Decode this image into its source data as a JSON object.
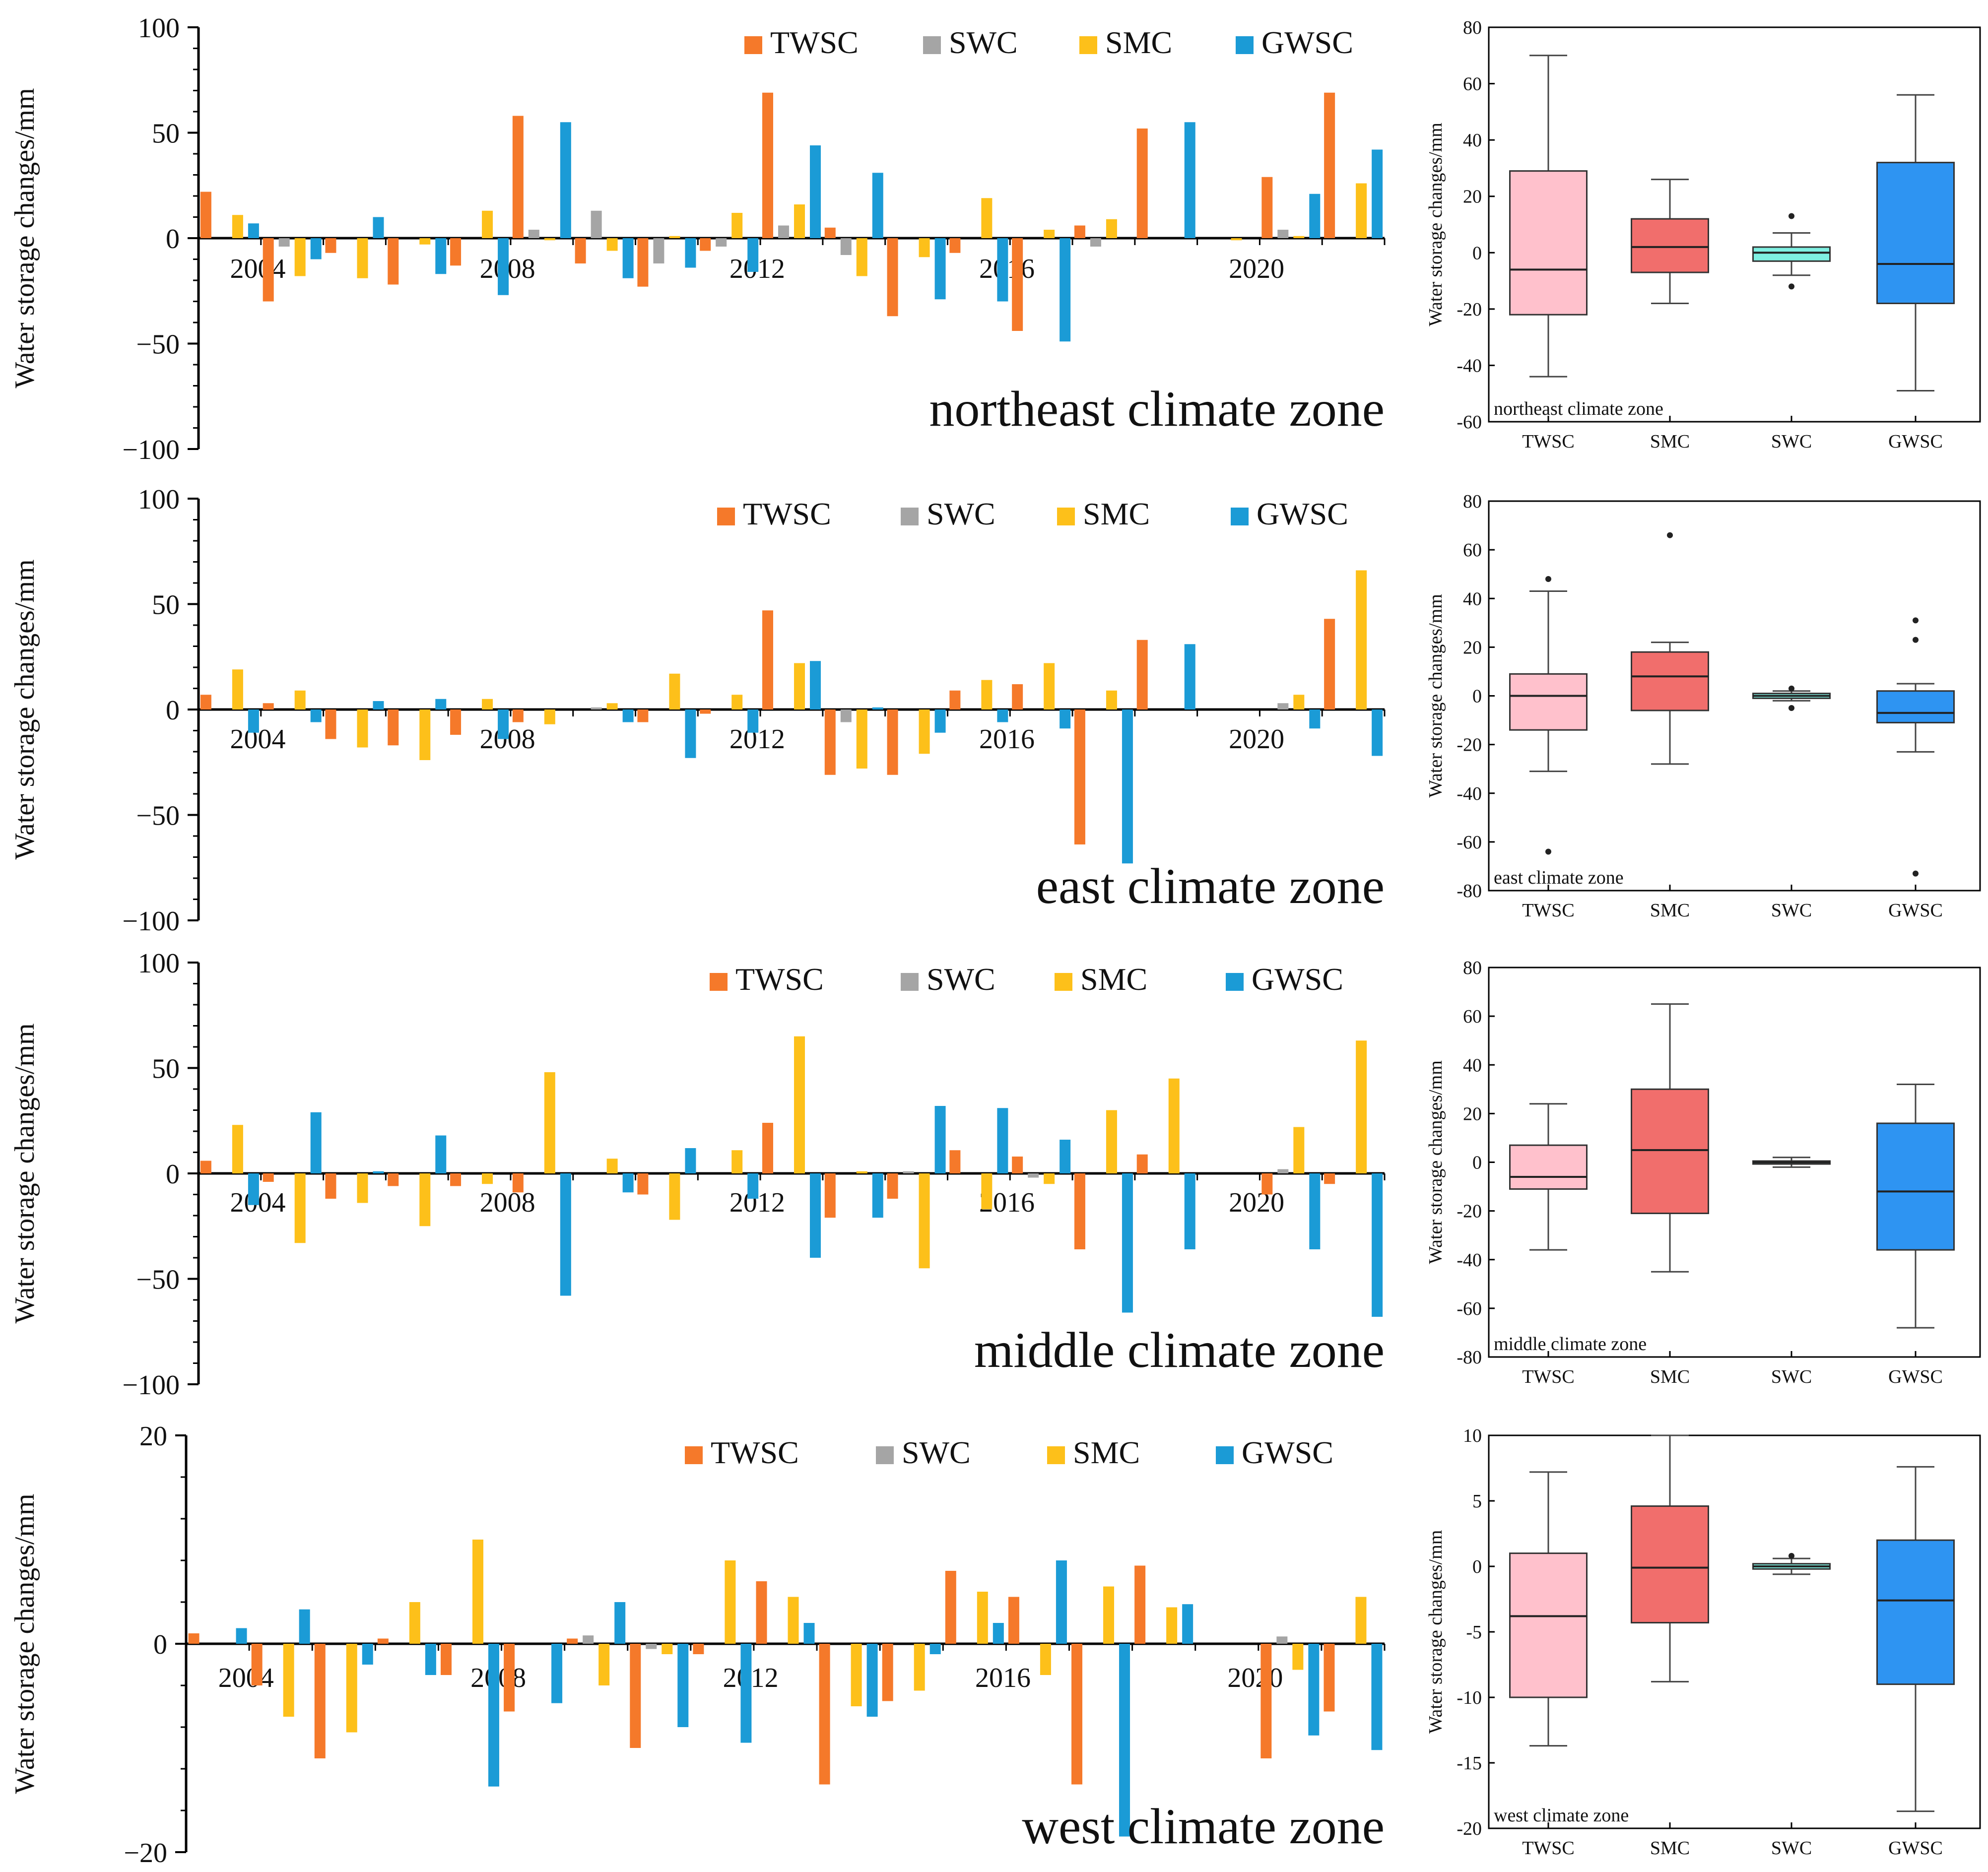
{
  "colors": {
    "TWSC": "#F5792A",
    "SWC": "#A5A5A5",
    "SMC": "#FDC01A",
    "GWSC": "#1B9BD6",
    "box_TWSC": "#FFC1CC",
    "box_SMC": "#F16E6C",
    "box_SWC": "#7FF0E2",
    "box_GWSC": "#2E94F2"
  },
  "chart_data": [
    {
      "type": "bar",
      "zone": "northeast climate zone",
      "ylabel": "Water storage changes/mm",
      "ylim": [
        -100,
        100
      ],
      "yticks": [
        "100",
        "50",
        "0",
        "−50",
        "−100"
      ],
      "year_labels": [
        "2004",
        "2008",
        "2012",
        "2016",
        "2020"
      ],
      "categories": [
        "2003",
        "2004",
        "2005",
        "2006",
        "2007",
        "2008",
        "2009",
        "2010",
        "2011",
        "2012",
        "2013",
        "2014",
        "2015",
        "2016",
        "2017",
        "2018",
        "2019",
        "2020",
        "2021"
      ],
      "legend": [
        "TWSC",
        "SWC",
        "SMC",
        "GWSC"
      ],
      "series": [
        {
          "name": "TWSC",
          "values": [
            22,
            -30,
            -7,
            -22,
            -13,
            58,
            -12,
            -23,
            -6,
            69,
            5,
            -37,
            -7,
            -44,
            6,
            52,
            0,
            29,
            69
          ]
        },
        {
          "name": "SWC",
          "values": [
            0,
            -4,
            0,
            0,
            0,
            4,
            13,
            -12,
            -4,
            6,
            -8,
            0,
            0,
            0,
            -4,
            0,
            0,
            4,
            0
          ]
        },
        {
          "name": "SMC",
          "values": [
            11,
            -18,
            -19,
            -3,
            13,
            -1,
            -6,
            1,
            12,
            16,
            -18,
            -9,
            19,
            4,
            9,
            0,
            -1,
            1,
            26
          ]
        },
        {
          "name": "GWSC",
          "values": [
            7,
            -10,
            10,
            -17,
            -27,
            55,
            -19,
            -14,
            -16,
            44,
            31,
            -29,
            -30,
            -49,
            0,
            55,
            0,
            21,
            42
          ]
        }
      ]
    },
    {
      "type": "bar",
      "zone": "east climate zone",
      "ylabel": "Water storage changes/mm",
      "ylim": [
        -100,
        100
      ],
      "yticks": [
        "100",
        "50",
        "0",
        "−50",
        "−100"
      ],
      "year_labels": [
        "2004",
        "2008",
        "2012",
        "2016",
        "2020"
      ],
      "categories": [
        "2003",
        "2004",
        "2005",
        "2006",
        "2007",
        "2008",
        "2009",
        "2010",
        "2011",
        "2012",
        "2013",
        "2014",
        "2015",
        "2016",
        "2017",
        "2018",
        "2019",
        "2020",
        "2021"
      ],
      "legend": [
        "TWSC",
        "SWC",
        "SMC",
        "GWSC"
      ],
      "series": [
        {
          "name": "TWSC",
          "values": [
            7,
            3,
            -14,
            -17,
            -12,
            -6,
            0,
            -6,
            -2,
            47,
            -31,
            -31,
            9,
            12,
            -64,
            33,
            0,
            0,
            43
          ]
        },
        {
          "name": "SWC",
          "values": [
            0,
            0,
            0,
            0,
            0,
            0,
            1,
            0,
            0,
            0,
            -6,
            0,
            0,
            0,
            0,
            0,
            0,
            3,
            0
          ]
        },
        {
          "name": "SMC",
          "values": [
            19,
            9,
            -18,
            -24,
            5,
            -7,
            3,
            17,
            7,
            22,
            -28,
            -21,
            14,
            22,
            9,
            0,
            0,
            7,
            66
          ]
        },
        {
          "name": "GWSC",
          "values": [
            -11,
            -6,
            4,
            5,
            -14,
            0,
            -6,
            -23,
            -11,
            23,
            1,
            -11,
            -6,
            -9,
            -73,
            31,
            0,
            -9,
            -22
          ]
        }
      ]
    },
    {
      "type": "bar",
      "zone": "middle climate zone",
      "ylabel": "Water storage changes/mm",
      "ylim": [
        -100,
        100
      ],
      "yticks": [
        "100",
        "50",
        "0",
        "−50",
        "−100"
      ],
      "year_labels": [
        "2004",
        "2008",
        "2012",
        "2016",
        "2020"
      ],
      "categories": [
        "2003",
        "2004",
        "2005",
        "2006",
        "2007",
        "2008",
        "2009",
        "2010",
        "2011",
        "2012",
        "2013",
        "2014",
        "2015",
        "2016",
        "2017",
        "2018",
        "2019",
        "2020",
        "2021"
      ],
      "legend": [
        "TWSC",
        "SWC",
        "SMC",
        "GWSC"
      ],
      "series": [
        {
          "name": "TWSC",
          "values": [
            6,
            -4,
            -12,
            -6,
            -6,
            -9,
            0,
            -10,
            0,
            24,
            -21,
            -12,
            11,
            8,
            -36,
            9,
            0,
            -10,
            -5
          ]
        },
        {
          "name": "SWC",
          "values": [
            0,
            0,
            0,
            0,
            0,
            0,
            0,
            0,
            0,
            0,
            0,
            1,
            0,
            -2,
            0,
            0,
            0,
            2,
            0
          ]
        },
        {
          "name": "SMC",
          "values": [
            23,
            -33,
            -14,
            -25,
            -5,
            48,
            7,
            -22,
            11,
            65,
            1,
            -45,
            -17,
            -5,
            30,
            45,
            0,
            22,
            63
          ]
        },
        {
          "name": "GWSC",
          "values": [
            -15,
            29,
            1,
            18,
            0,
            -58,
            -9,
            12,
            -12,
            -40,
            -21,
            32,
            31,
            16,
            -66,
            -36,
            0,
            -36,
            -68
          ]
        }
      ]
    },
    {
      "type": "bar",
      "zone": "west climate zone",
      "ylabel": "Water storage changes/mm",
      "ylim": [
        -20,
        20
      ],
      "yticks": [
        "20",
        "0",
        "−20"
      ],
      "year_labels": [
        "2004",
        "2008",
        "2012",
        "2016",
        "2020"
      ],
      "categories": [
        "2003",
        "2004",
        "2005",
        "2006",
        "2007",
        "2008",
        "2009",
        "2010",
        "2011",
        "2012",
        "2013",
        "2014",
        "2015",
        "2016",
        "2017",
        "2018",
        "2019",
        "2020",
        "2021"
      ],
      "legend": [
        "TWSC",
        "SWC",
        "SMC",
        "GWSC"
      ],
      "series": [
        {
          "name": "TWSC",
          "values": [
            1,
            -4,
            -11,
            0.5,
            -3,
            -6.5,
            0.5,
            -10,
            -1,
            6,
            -13.5,
            -5.5,
            7,
            4.5,
            -13.5,
            7.5,
            0,
            -11,
            -6.5
          ]
        },
        {
          "name": "SWC",
          "values": [
            0,
            0,
            0,
            0,
            0,
            0,
            0.8,
            -0.5,
            0,
            0,
            0,
            0,
            0,
            0,
            0,
            0,
            0,
            0.7,
            0
          ]
        },
        {
          "name": "SMC",
          "values": [
            0,
            -7,
            -8.5,
            4,
            10,
            0,
            -4,
            -1,
            8,
            4.5,
            -6,
            -4.5,
            5,
            -3,
            5.5,
            3.5,
            0,
            -2.5,
            4.5
          ]
        },
        {
          "name": "GWSC",
          "values": [
            1.5,
            3.3,
            -2,
            -3,
            -13.7,
            -5.7,
            4,
            -8,
            -9.5,
            2,
            -7,
            -1,
            2,
            8,
            -18.5,
            3.8,
            0,
            -8.8,
            -10.2
          ]
        }
      ]
    },
    {
      "type": "box",
      "zone": "northeast climate zone",
      "ylabel": "Water storage changes/mm",
      "ylim": [
        -60,
        80
      ],
      "yticks": [
        -60,
        -40,
        -20,
        0,
        20,
        40,
        60,
        80
      ],
      "categories": [
        "TWSC",
        "SMC",
        "SWC",
        "GWSC"
      ],
      "boxes": [
        {
          "name": "TWSC",
          "min": -44,
          "q1": -22,
          "median": -6,
          "q3": 29,
          "max": 70,
          "outliers": []
        },
        {
          "name": "SMC",
          "min": -18,
          "q1": -7,
          "median": 2,
          "q3": 12,
          "max": 26,
          "outliers": []
        },
        {
          "name": "SWC",
          "min": -8,
          "q1": -3,
          "median": 0,
          "q3": 2,
          "max": 7,
          "outliers": [
            13,
            -12
          ]
        },
        {
          "name": "GWSC",
          "min": -49,
          "q1": -18,
          "median": -4,
          "q3": 32,
          "max": 56,
          "outliers": []
        }
      ]
    },
    {
      "type": "box",
      "zone": "east climate zone",
      "ylabel": "Water storage changes/mm",
      "ylim": [
        -80,
        80
      ],
      "yticks": [
        -80,
        -60,
        -40,
        -20,
        0,
        20,
        40,
        60,
        80
      ],
      "categories": [
        "TWSC",
        "SMC",
        "SWC",
        "GWSC"
      ],
      "boxes": [
        {
          "name": "TWSC",
          "min": -31,
          "q1": -14,
          "median": 0,
          "q3": 9,
          "max": 43,
          "outliers": [
            48,
            -64
          ]
        },
        {
          "name": "SMC",
          "min": -28,
          "q1": -6,
          "median": 8,
          "q3": 18,
          "max": 22,
          "outliers": [
            66
          ]
        },
        {
          "name": "SWC",
          "min": -2,
          "q1": -1,
          "median": 0,
          "q3": 1,
          "max": 2,
          "outliers": [
            3,
            -5
          ]
        },
        {
          "name": "GWSC",
          "min": -23,
          "q1": -11,
          "median": -7,
          "q3": 2,
          "max": 5,
          "outliers": [
            31,
            23,
            -73
          ]
        }
      ]
    },
    {
      "type": "box",
      "zone": "middle climate zone",
      "ylabel": "Water storage changes/mm",
      "ylim": [
        -80,
        80
      ],
      "yticks": [
        -80,
        -60,
        -40,
        -20,
        0,
        20,
        40,
        60,
        80
      ],
      "categories": [
        "TWSC",
        "SMC",
        "SWC",
        "GWSC"
      ],
      "boxes": [
        {
          "name": "TWSC",
          "min": -36,
          "q1": -11,
          "median": -6,
          "q3": 7,
          "max": 24,
          "outliers": []
        },
        {
          "name": "SMC",
          "min": -45,
          "q1": -21,
          "median": 5,
          "q3": 30,
          "max": 65,
          "outliers": []
        },
        {
          "name": "SWC",
          "min": -2,
          "q1": -0.5,
          "median": 0,
          "q3": 0.5,
          "max": 2,
          "outliers": []
        },
        {
          "name": "GWSC",
          "min": -68,
          "q1": -36,
          "median": -12,
          "q3": 16,
          "max": 32,
          "outliers": []
        }
      ]
    },
    {
      "type": "box",
      "zone": "west climate zone",
      "ylabel": "Water storage changes/mm",
      "ylim": [
        -20,
        10
      ],
      "yticks": [
        -20,
        -15,
        -10,
        -5,
        0,
        5,
        10
      ],
      "categories": [
        "TWSC",
        "SMC",
        "SWC",
        "GWSC"
      ],
      "boxes": [
        {
          "name": "TWSC",
          "min": -13.7,
          "q1": -10,
          "median": -3.8,
          "q3": 1,
          "max": 7.2,
          "outliers": []
        },
        {
          "name": "SMC",
          "min": -8.8,
          "q1": -4.3,
          "median": -0.1,
          "q3": 4.6,
          "max": 10,
          "outliers": []
        },
        {
          "name": "SWC",
          "min": -0.6,
          "q1": -0.2,
          "median": 0,
          "q3": 0.2,
          "max": 0.6,
          "outliers": [
            0.8
          ]
        },
        {
          "name": "GWSC",
          "min": -18.7,
          "q1": -9,
          "median": -2.6,
          "q3": 2,
          "max": 7.6,
          "outliers": []
        }
      ]
    }
  ]
}
